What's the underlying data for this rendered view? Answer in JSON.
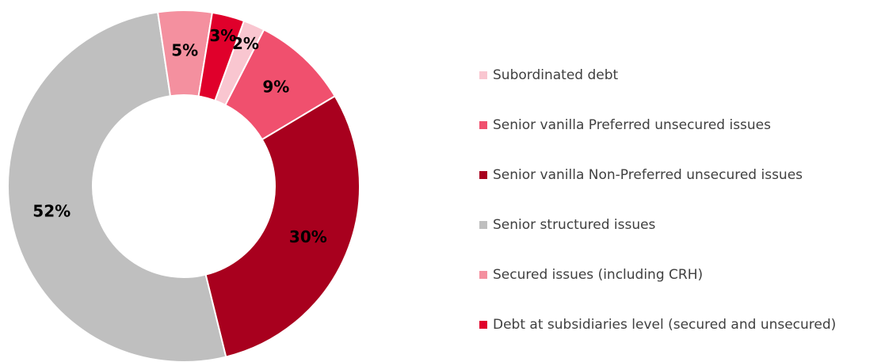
{
  "chart_data": {
    "type": "donut",
    "categories": [
      "Subordinated debt",
      "Senior vanilla Preferred unsecured issues",
      "Senior vanilla Non-Preferred unsecured issues",
      "Senior structured issues",
      "Secured issues (including CRH)",
      "Debt at subsidiaries level (secured and unsecured)"
    ],
    "values": [
      2,
      9,
      30,
      52,
      5,
      3
    ],
    "value_labels": [
      "2%",
      "9%",
      "30%",
      "52%",
      "5%",
      "3%"
    ],
    "colors": [
      "#f9c6d0",
      "#f0506e",
      "#a8001e",
      "#bfbfbf",
      "#f4909f",
      "#e0002b"
    ],
    "legend": "right"
  }
}
